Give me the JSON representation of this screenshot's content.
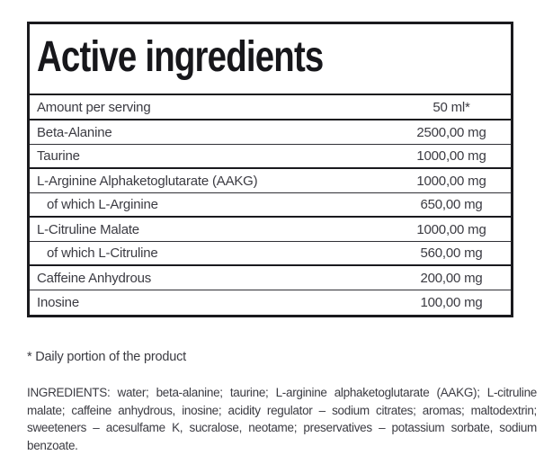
{
  "panel": {
    "title": "Active ingredients",
    "header": {
      "label": "Amount per serving",
      "value": "50 ml*"
    },
    "rows": [
      {
        "label": "Beta-Alanine",
        "amount": "2500,00 mg"
      },
      {
        "label": "Taurine",
        "amount": "1000,00 mg"
      },
      {
        "label": "L-Arginine Alphaketoglutarate (AAKG)",
        "amount": "1000,00 mg"
      },
      {
        "label": "of which L-Arginine",
        "amount": "650,00 mg"
      },
      {
        "label": "L-Citruline Malate",
        "amount": "1000,00 mg"
      },
      {
        "label": "of which L-Citruline",
        "amount": "560,00 mg"
      },
      {
        "label": "Caffeine Anhydrous",
        "amount": "200,00 mg"
      },
      {
        "label": "Inosine",
        "amount": "100,00 mg"
      }
    ]
  },
  "footnote": "* Daily portion of the product",
  "ingredients_paragraph": "INGREDIENTS: water; beta-alanine; taurine; L-arginine alphaketoglutarate (AAKG); L-citruline malate; caffeine anhydrous, inosine; acidity regulator – sodium citrates; aromas; maltodextrin; sweeteners – acesulfame K, sucralose, neotame; preservatives – potassium sorbate, sodium benzoate.",
  "colors": {
    "border": "#1a1a1e",
    "title_text": "#17171b",
    "body_text": "#3b3b42",
    "background": "#ffffff"
  }
}
